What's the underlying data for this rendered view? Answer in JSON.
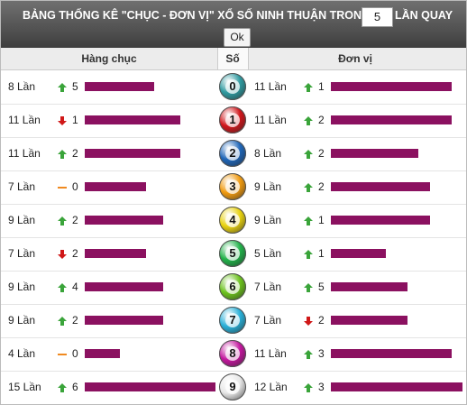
{
  "header": {
    "title": "BẢNG THỐNG KÊ \"CHỤC - ĐƠN VỊ\" XỔ SỐ NINH THUẬN TRONG",
    "input": "5",
    "suffix": "LẦN QUAY",
    "button": "Ok"
  },
  "table": {
    "columns": [
      "Hàng chục",
      "Số",
      "Đơn vị"
    ],
    "bar_color": "#8b1160",
    "rows": [
      {
        "digit": "0",
        "ball_color": "#2f9aa0",
        "tens": {
          "label": "8 Lần",
          "count": 8,
          "trend": "up",
          "change": 5
        },
        "units": {
          "label": "11 Lần",
          "count": 11,
          "trend": "up",
          "change": 1
        }
      },
      {
        "digit": "1",
        "ball_color": "#d0161b",
        "tens": {
          "label": "11 Lần",
          "count": 11,
          "trend": "down",
          "change": 1
        },
        "units": {
          "label": "11 Lần",
          "count": 11,
          "trend": "up",
          "change": 2
        }
      },
      {
        "digit": "2",
        "ball_color": "#1f66b8",
        "tens": {
          "label": "11 Lần",
          "count": 11,
          "trend": "up",
          "change": 2
        },
        "units": {
          "label": "8 Lần",
          "count": 8,
          "trend": "up",
          "change": 2
        }
      },
      {
        "digit": "3",
        "ball_color": "#f09a10",
        "tens": {
          "label": "7 Lần",
          "count": 7,
          "trend": "flat",
          "change": 0
        },
        "units": {
          "label": "9 Lần",
          "count": 9,
          "trend": "up",
          "change": 2
        }
      },
      {
        "digit": "4",
        "ball_color": "#e8d210",
        "tens": {
          "label": "9 Lần",
          "count": 9,
          "trend": "up",
          "change": 2
        },
        "units": {
          "label": "9 Lần",
          "count": 9,
          "trend": "up",
          "change": 1
        }
      },
      {
        "digit": "5",
        "ball_color": "#22b24a",
        "tens": {
          "label": "7 Lần",
          "count": 7,
          "trend": "down",
          "change": 2
        },
        "units": {
          "label": "5 Lần",
          "count": 5,
          "trend": "up",
          "change": 1
        }
      },
      {
        "digit": "6",
        "ball_color": "#6cc21e",
        "tens": {
          "label": "9 Lần",
          "count": 9,
          "trend": "up",
          "change": 4
        },
        "units": {
          "label": "7 Lần",
          "count": 7,
          "trend": "up",
          "change": 5
        }
      },
      {
        "digit": "7",
        "ball_color": "#29b0d8",
        "tens": {
          "label": "9 Lần",
          "count": 9,
          "trend": "up",
          "change": 2
        },
        "units": {
          "label": "7 Lần",
          "count": 7,
          "trend": "down",
          "change": 2
        }
      },
      {
        "digit": "8",
        "ball_color": "#c3179e",
        "tens": {
          "label": "4 Lần",
          "count": 4,
          "trend": "flat",
          "change": 0
        },
        "units": {
          "label": "11 Lần",
          "count": 11,
          "trend": "up",
          "change": 3
        }
      },
      {
        "digit": "9",
        "ball_color": "#e8e8e8",
        "tens": {
          "label": "15 Lần",
          "count": 15,
          "trend": "up",
          "change": 6
        },
        "units": {
          "label": "12 Lần",
          "count": 12,
          "trend": "up",
          "change": 3
        }
      }
    ]
  }
}
